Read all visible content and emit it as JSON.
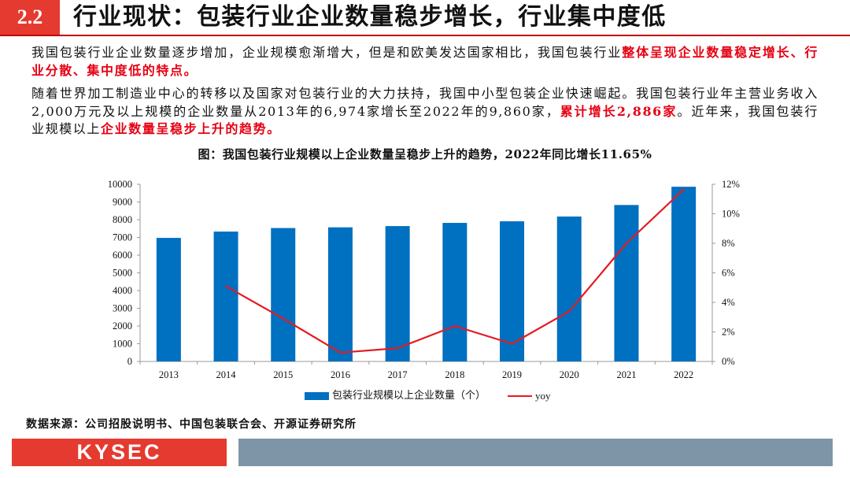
{
  "header": {
    "section_number": "2.2",
    "title": "行业现状：包装行业企业数量稳步增长，行业集中度低"
  },
  "body": {
    "p1_text": "我国包装行业企业数量逐步增加，企业规模愈渐增大，但是和欧美发达国家相比，我国包装行业",
    "p1_highlight": "整体呈现企业数量稳定增长、行业分散、集中度低的特点。",
    "p2_text_a": "随着世界加工制造业中心的转移以及国家对包装行业的大力扶持，我国中小型包装企业快速崛起。我国包装行业年主营业务收入2,000万元及以上规模的企业数量从2013年的6,974家增长至2022年的9,860家，",
    "p2_highlight_a": "累计增长2,886家",
    "p2_text_b": "。近年来，我国包装行业规模以上",
    "p2_highlight_b": "企业数量呈稳步上升的趋势。"
  },
  "chart_data": {
    "type": "bar",
    "title": "图：我国包装行业规模以上企业数量呈稳步上升的趋势，2022年同比增长11.65%",
    "categories": [
      "2013",
      "2014",
      "2015",
      "2016",
      "2017",
      "2018",
      "2019",
      "2020",
      "2021",
      "2022"
    ],
    "series": [
      {
        "name": "包装行业规模以上企业数量（个）",
        "type": "bar",
        "axis": "left",
        "values": [
          6974,
          7330,
          7530,
          7570,
          7640,
          7820,
          7910,
          8180,
          8830,
          9860
        ]
      },
      {
        "name": "yoy",
        "type": "line",
        "axis": "right",
        "values": [
          null,
          5.1,
          2.9,
          0.6,
          0.9,
          2.4,
          1.2,
          3.4,
          8.0,
          11.65
        ]
      }
    ],
    "xlabel": "",
    "ylabel": "",
    "ylim": [
      0,
      10000
    ],
    "y2lim": [
      0,
      12
    ],
    "y_ticks": [
      "0",
      "1000",
      "2000",
      "3000",
      "4000",
      "5000",
      "6000",
      "7000",
      "8000",
      "9000",
      "10000"
    ],
    "y2_ticks": [
      "0%",
      "2%",
      "4%",
      "6%",
      "8%",
      "10%",
      "12%"
    ],
    "grid": false,
    "legend": "bottom"
  },
  "source": "数据来源：公司招股说明书、中国包装联合会、开源证券研究所",
  "footer": {
    "logo_text": "KYSEC"
  },
  "colors": {
    "accent_red": "#e53a2f",
    "header_rule": "#c00000",
    "highlight_red": "#e60012",
    "bar_blue": "#0070c0",
    "line_red": "#e31b23",
    "footer_gray": "#7e95a8"
  }
}
